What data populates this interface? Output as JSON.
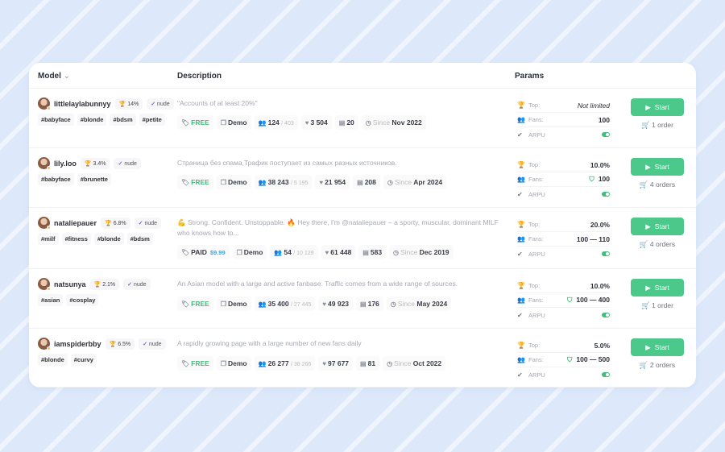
{
  "header": {
    "model": "Model",
    "description": "Description",
    "params": "Params"
  },
  "labels": {
    "top": "Top:",
    "fans": "Fans:",
    "arpu": "ARPU",
    "start": "Start",
    "demo": "Demo",
    "since": "Since",
    "nude": "nude"
  },
  "rows": [
    {
      "name": "littlelaylabunnyy",
      "rate": "14%",
      "tags": [
        "#babyface",
        "#blonde",
        "#bdsm",
        "#petite"
      ],
      "description": "\"Accounts of at least 20%\"",
      "type": "FREE",
      "price": "",
      "fans": "124",
      "fans_total": "/ 403",
      "likes": "3 504",
      "posts": "20",
      "since": "Nov 2022",
      "top": "Not limited",
      "top_italic": true,
      "fans_param": "100",
      "shield": false,
      "arpu": true,
      "orders": "1 order"
    },
    {
      "name": "lily.loo",
      "rate": "3.4%",
      "tags": [
        "#babyface",
        "#brunette"
      ],
      "description": "Страница без спама,Трафик поступает из самых разных источников.",
      "type": "FREE",
      "price": "",
      "fans": "38 243",
      "fans_total": "/ 5 195",
      "likes": "21 954",
      "posts": "208",
      "since": "Apr 2024",
      "top": "10.0%",
      "fans_param": "100",
      "shield": true,
      "arpu": true,
      "orders": "4 orders"
    },
    {
      "name": "nataliepauer",
      "rate": "6.8%",
      "tags": [
        "#milf",
        "#fitness",
        "#blonde",
        "#bdsm"
      ],
      "description": "💪 Strong. Confident. Unstoppable. 🔥 Hey there, I'm @nataliepauer – a sporty, muscular, dominant MILF who knows how to...",
      "type": "PAID",
      "price": "$9.99",
      "fans": "54",
      "fans_total": "/ 10 129",
      "likes": "61 448",
      "posts": "583",
      "since": "Dec 2019",
      "top": "20.0%",
      "fans_param": "100 — 110",
      "shield": false,
      "arpu": true,
      "orders": "4 orders"
    },
    {
      "name": "natsunya",
      "rate": "2.1%",
      "tags": [
        "#asian",
        "#cosplay"
      ],
      "description": "An Asian model with a large and active fanbase. Traffic comes from a wide range of sources.",
      "type": "FREE",
      "price": "",
      "fans": "35 400",
      "fans_total": "/ 27 445",
      "likes": "49 923",
      "posts": "176",
      "since": "May 2024",
      "top": "10.0%",
      "fans_param": "100 — 400",
      "shield": true,
      "arpu": true,
      "orders": "1 order"
    },
    {
      "name": "iamspiderbby",
      "rate": "6.5%",
      "tags": [
        "#blonde",
        "#curvy"
      ],
      "description": "A rapidly growing page with a large number of new fans daily",
      "type": "FREE",
      "price": "",
      "fans": "26 277",
      "fans_total": "/ 38 266",
      "likes": "97 677",
      "posts": "81",
      "since": "Oct 2022",
      "top": "5.0%",
      "fans_param": "100 — 500",
      "shield": true,
      "arpu": true,
      "orders": "2 orders"
    }
  ]
}
